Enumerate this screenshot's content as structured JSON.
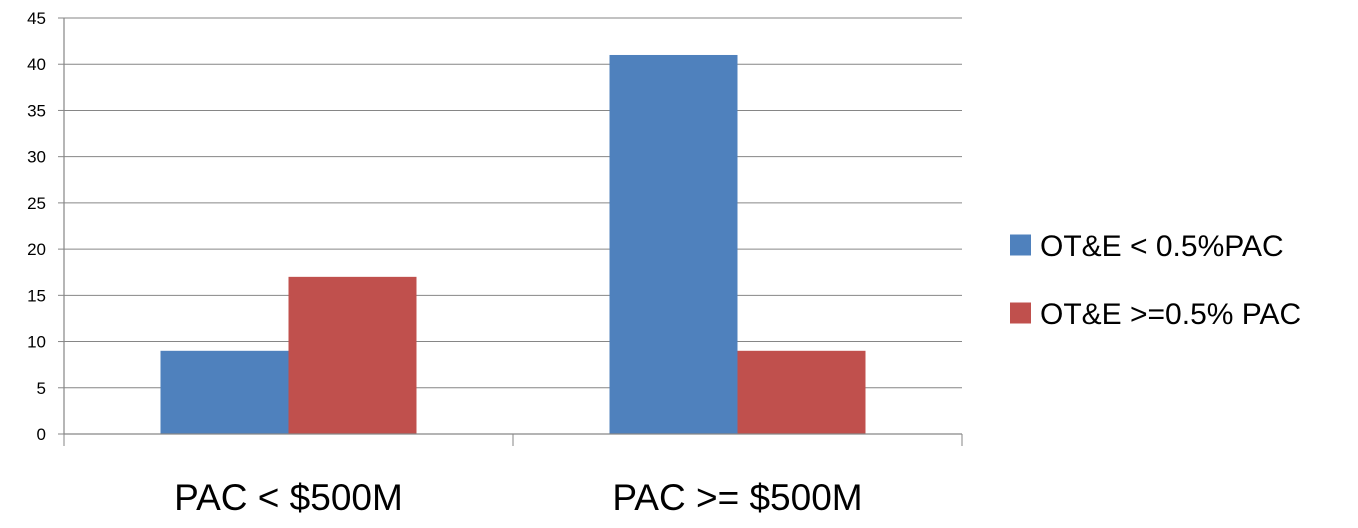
{
  "chart_data": {
    "type": "bar",
    "categories": [
      "PAC < $500M",
      "PAC >= $500M"
    ],
    "series": [
      {
        "name": "OT&E < 0.5%PAC",
        "values": [
          9,
          41
        ],
        "color": "#4F81BD"
      },
      {
        "name": "OT&E >=0.5% PAC",
        "values": [
          17,
          9
        ],
        "color": "#C0504D"
      }
    ],
    "ylim": [
      0,
      45
    ],
    "ytick_step": 5,
    "yticks": [
      "0",
      "5",
      "10",
      "15",
      "20",
      "25",
      "30",
      "35",
      "40",
      "45"
    ],
    "grid": true,
    "legend_position": "right"
  }
}
